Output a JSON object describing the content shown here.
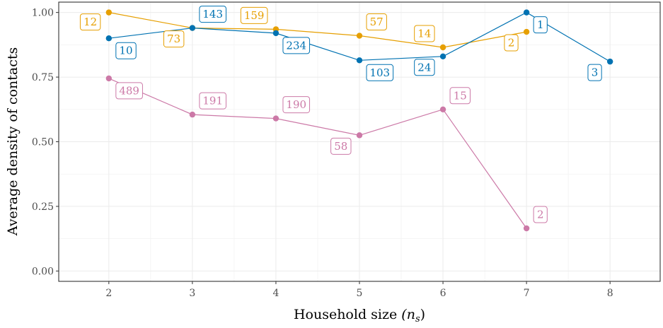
{
  "chart_data": {
    "type": "line",
    "title": "",
    "xlabel": "Household size",
    "xlabel_math": "(n",
    "xlabel_sub": "s",
    "xlabel_close": ")",
    "ylabel": "Average density of contacts",
    "xlim": [
      1.4,
      8.6
    ],
    "ylim": [
      -0.04,
      1.04
    ],
    "x_ticks": [
      2,
      3,
      4,
      5,
      6,
      7,
      8
    ],
    "x_tick_labels": [
      "2",
      "3",
      "4",
      "5",
      "6",
      "7",
      "8"
    ],
    "y_ticks": [
      0,
      0.25,
      0.5,
      0.75,
      1.0
    ],
    "y_tick_labels": [
      "0.00",
      "0.25",
      "0.50",
      "0.75",
      "1.00"
    ],
    "grid": true,
    "legend": "none",
    "series": [
      {
        "color": "#E69F00",
        "points": [
          {
            "x": 2,
            "y": 1.0,
            "label": "12",
            "ldir": "left"
          },
          {
            "x": 3,
            "y": 0.94,
            "label": "73",
            "ldir": "left-below"
          },
          {
            "x": 4,
            "y": 0.935,
            "label": "159",
            "ldir": "left-above"
          },
          {
            "x": 5,
            "y": 0.91,
            "label": "57",
            "ldir": "right-above"
          },
          {
            "x": 6,
            "y": 0.865,
            "label": "14",
            "ldir": "left-above"
          },
          {
            "x": 7,
            "y": 0.925,
            "label": "2",
            "ldir": "left-below"
          }
        ]
      },
      {
        "color": "#0072B2",
        "points": [
          {
            "x": 2,
            "y": 0.9,
            "label": "10",
            "ldir": "right-below"
          },
          {
            "x": 3,
            "y": 0.94,
            "label": "143",
            "ldir": "right-above"
          },
          {
            "x": 4,
            "y": 0.92,
            "label": "234",
            "ldir": "right-below"
          },
          {
            "x": 5,
            "y": 0.815,
            "label": "103",
            "ldir": "right-below"
          },
          {
            "x": 6,
            "y": 0.83,
            "label": "24",
            "ldir": "left-below"
          },
          {
            "x": 7,
            "y": 1.0,
            "label": "1",
            "ldir": "right-below"
          },
          {
            "x": 8,
            "y": 0.81,
            "label": "3",
            "ldir": "left-below"
          }
        ]
      },
      {
        "color": "#CC79A7",
        "points": [
          {
            "x": 2,
            "y": 0.745,
            "label": "489",
            "ldir": "right-below"
          },
          {
            "x": 3,
            "y": 0.605,
            "label": "191",
            "ldir": "right-above"
          },
          {
            "x": 4,
            "y": 0.59,
            "label": "190",
            "ldir": "right-above"
          },
          {
            "x": 5,
            "y": 0.525,
            "label": "58",
            "ldir": "left-below"
          },
          {
            "x": 6,
            "y": 0.625,
            "label": "15",
            "ldir": "right-above"
          },
          {
            "x": 7,
            "y": 0.165,
            "label": "2",
            "ldir": "right-above"
          }
        ]
      }
    ]
  }
}
